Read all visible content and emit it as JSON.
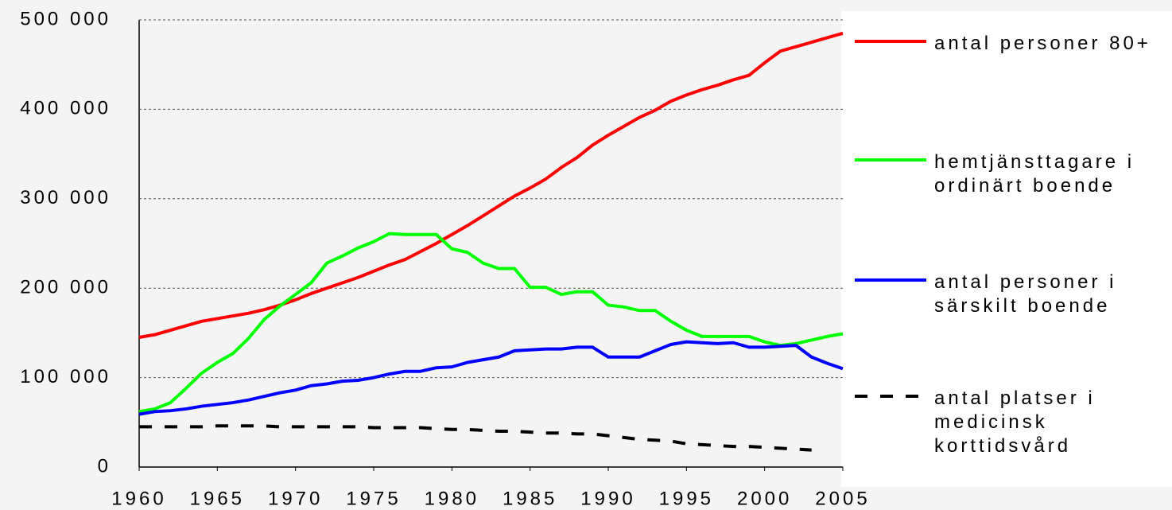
{
  "chart_data": {
    "type": "line",
    "x": [
      1960,
      1961,
      1962,
      1963,
      1964,
      1965,
      1966,
      1967,
      1968,
      1969,
      1970,
      1971,
      1972,
      1973,
      1974,
      1975,
      1976,
      1977,
      1978,
      1979,
      1980,
      1981,
      1982,
      1983,
      1984,
      1985,
      1986,
      1987,
      1988,
      1989,
      1990,
      1991,
      1992,
      1993,
      1994,
      1995,
      1996,
      1997,
      1998,
      1999,
      2000,
      2001,
      2002,
      2003,
      2004,
      2005
    ],
    "xlim": [
      1960,
      2005
    ],
    "xticks": [
      1960,
      1965,
      1970,
      1975,
      1980,
      1985,
      1990,
      1995,
      2000,
      2005
    ],
    "ylim": [
      0,
      500000
    ],
    "yticks": [
      0,
      {
        "value": 100000,
        "label": "100 000"
      },
      {
        "value": 200000,
        "label": "200 000"
      },
      {
        "value": 300000,
        "label": "300 000"
      },
      {
        "value": 400000,
        "label": "400 000"
      },
      {
        "value": 500000,
        "label": "500 000"
      }
    ],
    "grid": true,
    "legend": "right",
    "series": [
      {
        "name": "antal personer 80+",
        "color": "#ff0000",
        "dashed": false,
        "values": [
          145000,
          148000,
          153000,
          158000,
          163000,
          166000,
          169000,
          172000,
          176000,
          181000,
          187000,
          194000,
          200000,
          206000,
          212000,
          219000,
          226000,
          232000,
          241000,
          250000,
          260000,
          270000,
          281000,
          292000,
          303000,
          312000,
          322000,
          335000,
          346000,
          360000,
          371000,
          381000,
          391000,
          399000,
          409000,
          416000,
          422000,
          427000,
          433000,
          438000,
          452000,
          465000,
          470000,
          475000,
          480000,
          485000
        ]
      },
      {
        "name": "hemtjänsttagare i ordinärt boende",
        "color": "#00ff00",
        "dashed": false,
        "values": [
          62000,
          65000,
          72000,
          88000,
          105000,
          117000,
          127000,
          144000,
          165000,
          180000,
          193000,
          206000,
          228000,
          236000,
          245000,
          252000,
          261000,
          260000,
          260000,
          260000,
          244000,
          240000,
          228000,
          222000,
          222000,
          201000,
          201000,
          193000,
          196000,
          196000,
          181000,
          179000,
          175000,
          175000,
          163000,
          153000,
          146000,
          146000,
          146000,
          146000,
          140000,
          136000,
          138000,
          142000,
          146000,
          149000
        ]
      },
      {
        "name": "antal personer i särskilt boende",
        "color": "#0000ff",
        "dashed": false,
        "values": [
          59000,
          62000,
          63000,
          65000,
          68000,
          70000,
          72000,
          75000,
          79000,
          83000,
          86000,
          91000,
          93000,
          96000,
          97000,
          100000,
          104000,
          107000,
          107000,
          111000,
          112000,
          117000,
          120000,
          123000,
          130000,
          131000,
          132000,
          132000,
          134000,
          134000,
          123000,
          123000,
          123000,
          130000,
          137000,
          140000,
          139000,
          138000,
          139000,
          134000,
          134000,
          135000,
          136000,
          123000,
          116000,
          110000
        ]
      },
      {
        "name": "antal platser i medicinsk korttidsvård",
        "color": "#000000",
        "dashed": true,
        "values": [
          45000,
          45000,
          45000,
          45000,
          45000,
          46000,
          46000,
          46000,
          46000,
          45000,
          45000,
          45000,
          45000,
          45000,
          45000,
          44000,
          44000,
          44000,
          44000,
          43000,
          42000,
          42000,
          41000,
          40000,
          40000,
          39000,
          38000,
          38000,
          37000,
          37000,
          35000,
          33000,
          31000,
          30000,
          29000,
          26000,
          25000,
          24000,
          23000,
          23000,
          22000,
          21000,
          20000,
          19000,
          null,
          null
        ]
      }
    ]
  }
}
